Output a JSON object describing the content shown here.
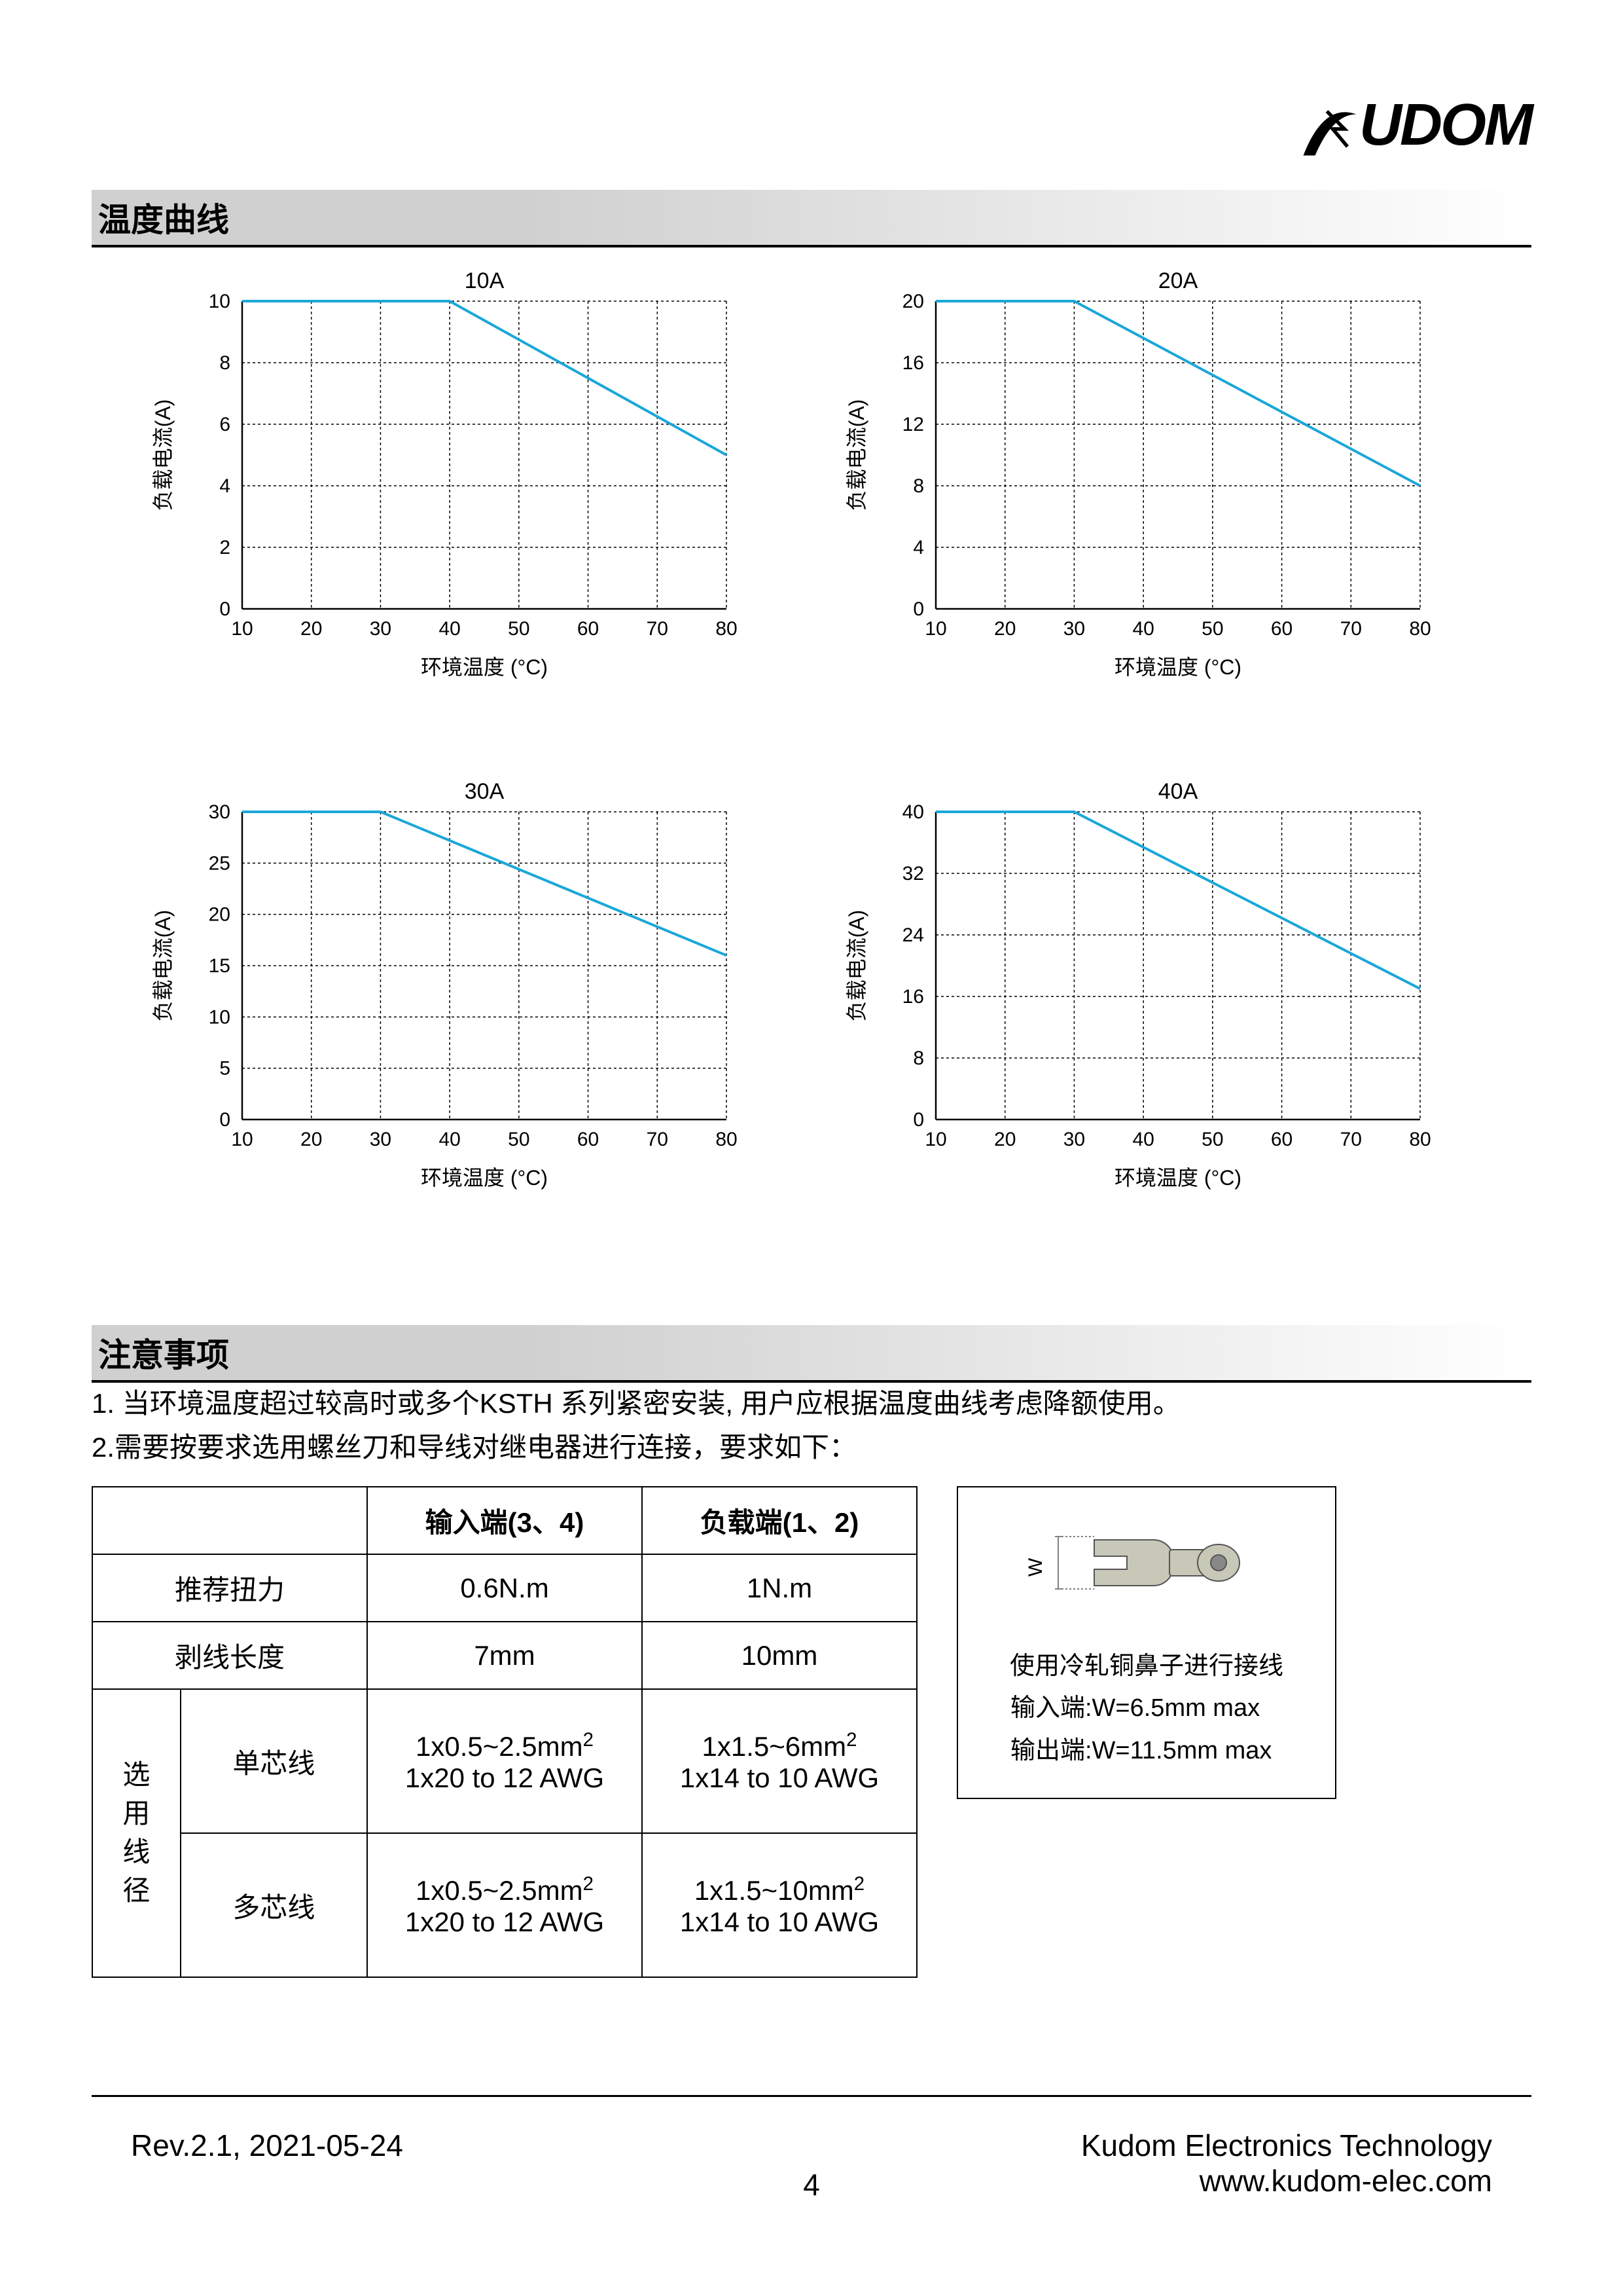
{
  "logo": {
    "text": "UDOM",
    "color": "#000000"
  },
  "section1_title": "温度曲线",
  "section2_title": "注意事项",
  "charts": [
    {
      "title": "10A",
      "ylabel": "负载电流(A)",
      "xlabel": "环境温度 (°C)",
      "xlim": [
        10,
        80
      ],
      "xtick_step": 10,
      "ylim": [
        0,
        10
      ],
      "ytick_step": 2,
      "line_color": "#1aa7d8",
      "line_width": 4,
      "grid_color": "#000000",
      "grid_dash": "4,4",
      "title_fontsize": 34,
      "axis_fontsize": 32,
      "tick_fontsize": 30,
      "points": [
        [
          10,
          10
        ],
        [
          40,
          10
        ],
        [
          80,
          5
        ]
      ]
    },
    {
      "title": "20A",
      "ylabel": "负载电流(A)",
      "xlabel": "环境温度 (°C)",
      "xlim": [
        10,
        80
      ],
      "xtick_step": 10,
      "ylim": [
        0,
        20
      ],
      "ytick_step": 4,
      "line_color": "#1aa7d8",
      "line_width": 4,
      "grid_color": "#000000",
      "grid_dash": "4,4",
      "title_fontsize": 34,
      "axis_fontsize": 32,
      "tick_fontsize": 30,
      "points": [
        [
          10,
          20
        ],
        [
          30,
          20
        ],
        [
          80,
          8
        ]
      ]
    },
    {
      "title": "30A",
      "ylabel": "负载电流(A)",
      "xlabel": "环境温度 (°C)",
      "xlim": [
        10,
        80
      ],
      "xtick_step": 10,
      "ylim": [
        0,
        30
      ],
      "ytick_step": 5,
      "line_color": "#1aa7d8",
      "line_width": 4,
      "grid_color": "#000000",
      "grid_dash": "4,4",
      "title_fontsize": 34,
      "axis_fontsize": 32,
      "tick_fontsize": 30,
      "points": [
        [
          10,
          30
        ],
        [
          30,
          30
        ],
        [
          80,
          16
        ]
      ]
    },
    {
      "title": "40A",
      "ylabel": "负载电流(A)",
      "xlabel": "环境温度 (°C)",
      "xlim": [
        10,
        80
      ],
      "xtick_step": 10,
      "ylim": [
        0,
        40
      ],
      "ytick_step": 8,
      "line_color": "#1aa7d8",
      "line_width": 4,
      "grid_color": "#000000",
      "grid_dash": "4,4",
      "title_fontsize": 34,
      "axis_fontsize": 32,
      "tick_fontsize": 30,
      "points": [
        [
          10,
          40
        ],
        [
          30,
          40
        ],
        [
          80,
          17
        ]
      ]
    }
  ],
  "notes": {
    "line1": "1. 当环境温度超过较高时或多个KSTH 系列紧密安装, 用户应根据温度曲线考虑降额使用。",
    "line2": "2.需要按要求选用螺丝刀和导线对继电器进行连接，要求如下："
  },
  "table": {
    "headers": {
      "c0": "",
      "c1": "输入端(3、4)",
      "c2": "负载端(1、2)"
    },
    "row_torque": {
      "label": "推荐扭力",
      "c1": "0.6N.m",
      "c2": "1N.m"
    },
    "row_strip": {
      "label": "剥线长度",
      "c1": "7mm",
      "c2": "10mm"
    },
    "wire_label": "选用线径",
    "row_single": {
      "label": "单芯线",
      "c1a": "1x0.5~2.5mm",
      "c1b": "1x20 to 12 AWG",
      "c2a": "1x1.5~6mm",
      "c2b": "1x14 to 10 AWG"
    },
    "row_multi": {
      "label": "多芯线",
      "c1a": "1x0.5~2.5mm",
      "c1b": "1x20 to 12 AWG",
      "c2a": "1x1.5~10mm",
      "c2b": "1x14 to 10 AWG"
    }
  },
  "sidebox": {
    "w_label": "W",
    "line1": "使用冷轧铜鼻子进行接线",
    "line2": "输入端:W=6.5mm max",
    "line3": "输出端:W=11.5mm max",
    "terminal_color": "#c8c8b8",
    "dimline_color": "#808080"
  },
  "footer": {
    "rev": "Rev.2.1, 2021-05-24",
    "company": "Kudom Electronics Technology",
    "url": "www.kudom-elec.com",
    "page": "4"
  }
}
